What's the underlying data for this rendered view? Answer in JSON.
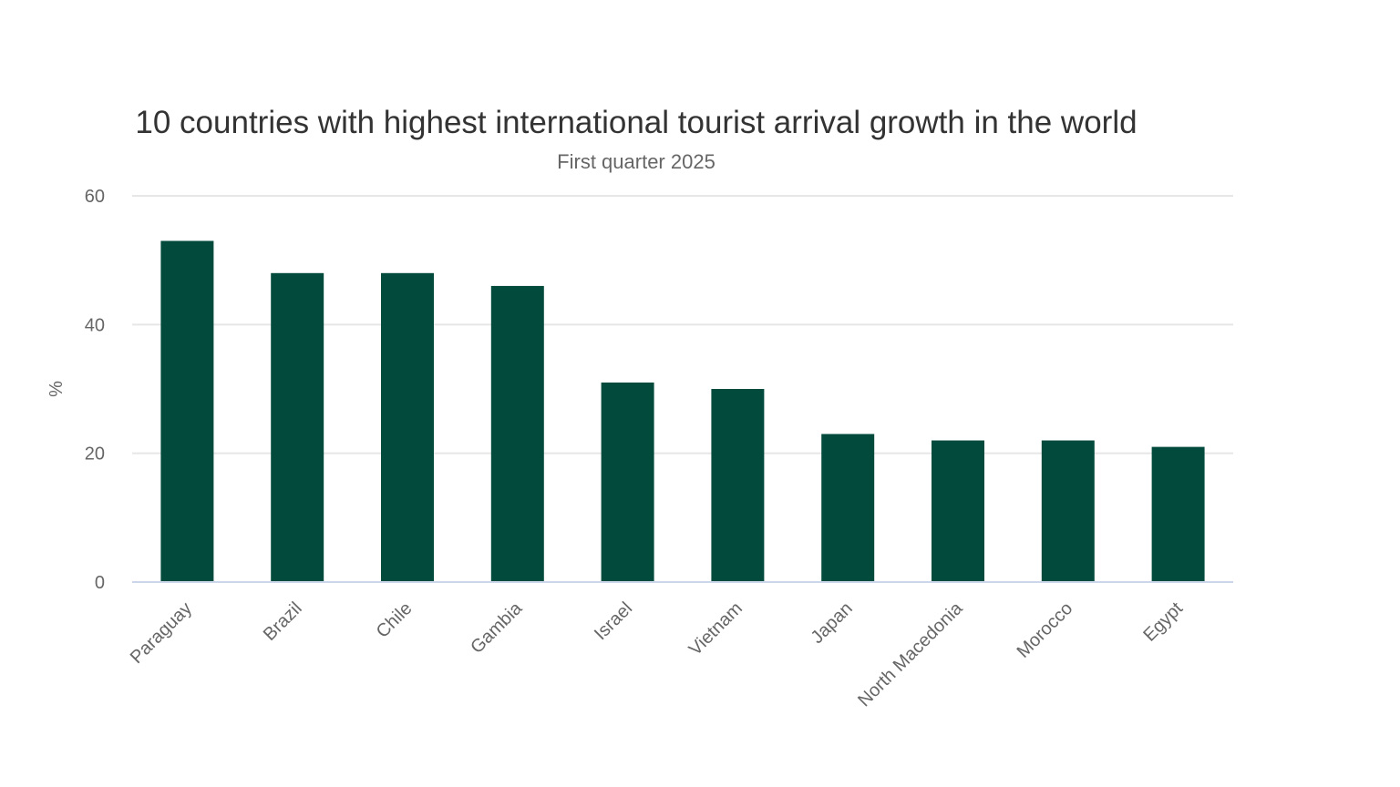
{
  "chart_data": {
    "type": "bar",
    "title": "10 countries with highest international tourist arrival growth in the world",
    "subtitle": "First quarter 2025",
    "xlabel": "",
    "ylabel": "%",
    "categories": [
      "Paraguay",
      "Brazil",
      "Chile",
      "Gambia",
      "Israel",
      "Vietnam",
      "Japan",
      "North Macedonia",
      "Morocco",
      "Egypt"
    ],
    "values": [
      53,
      48,
      48,
      46,
      31,
      30,
      23,
      22,
      22,
      21
    ],
    "ylim": [
      0,
      60
    ],
    "yticks": [
      0,
      20,
      40,
      60
    ],
    "grid": true,
    "legend": "none",
    "colors": {
      "bar": "#024b3c",
      "grid": "#e6e6e6",
      "axis": "#ccd6eb"
    }
  }
}
